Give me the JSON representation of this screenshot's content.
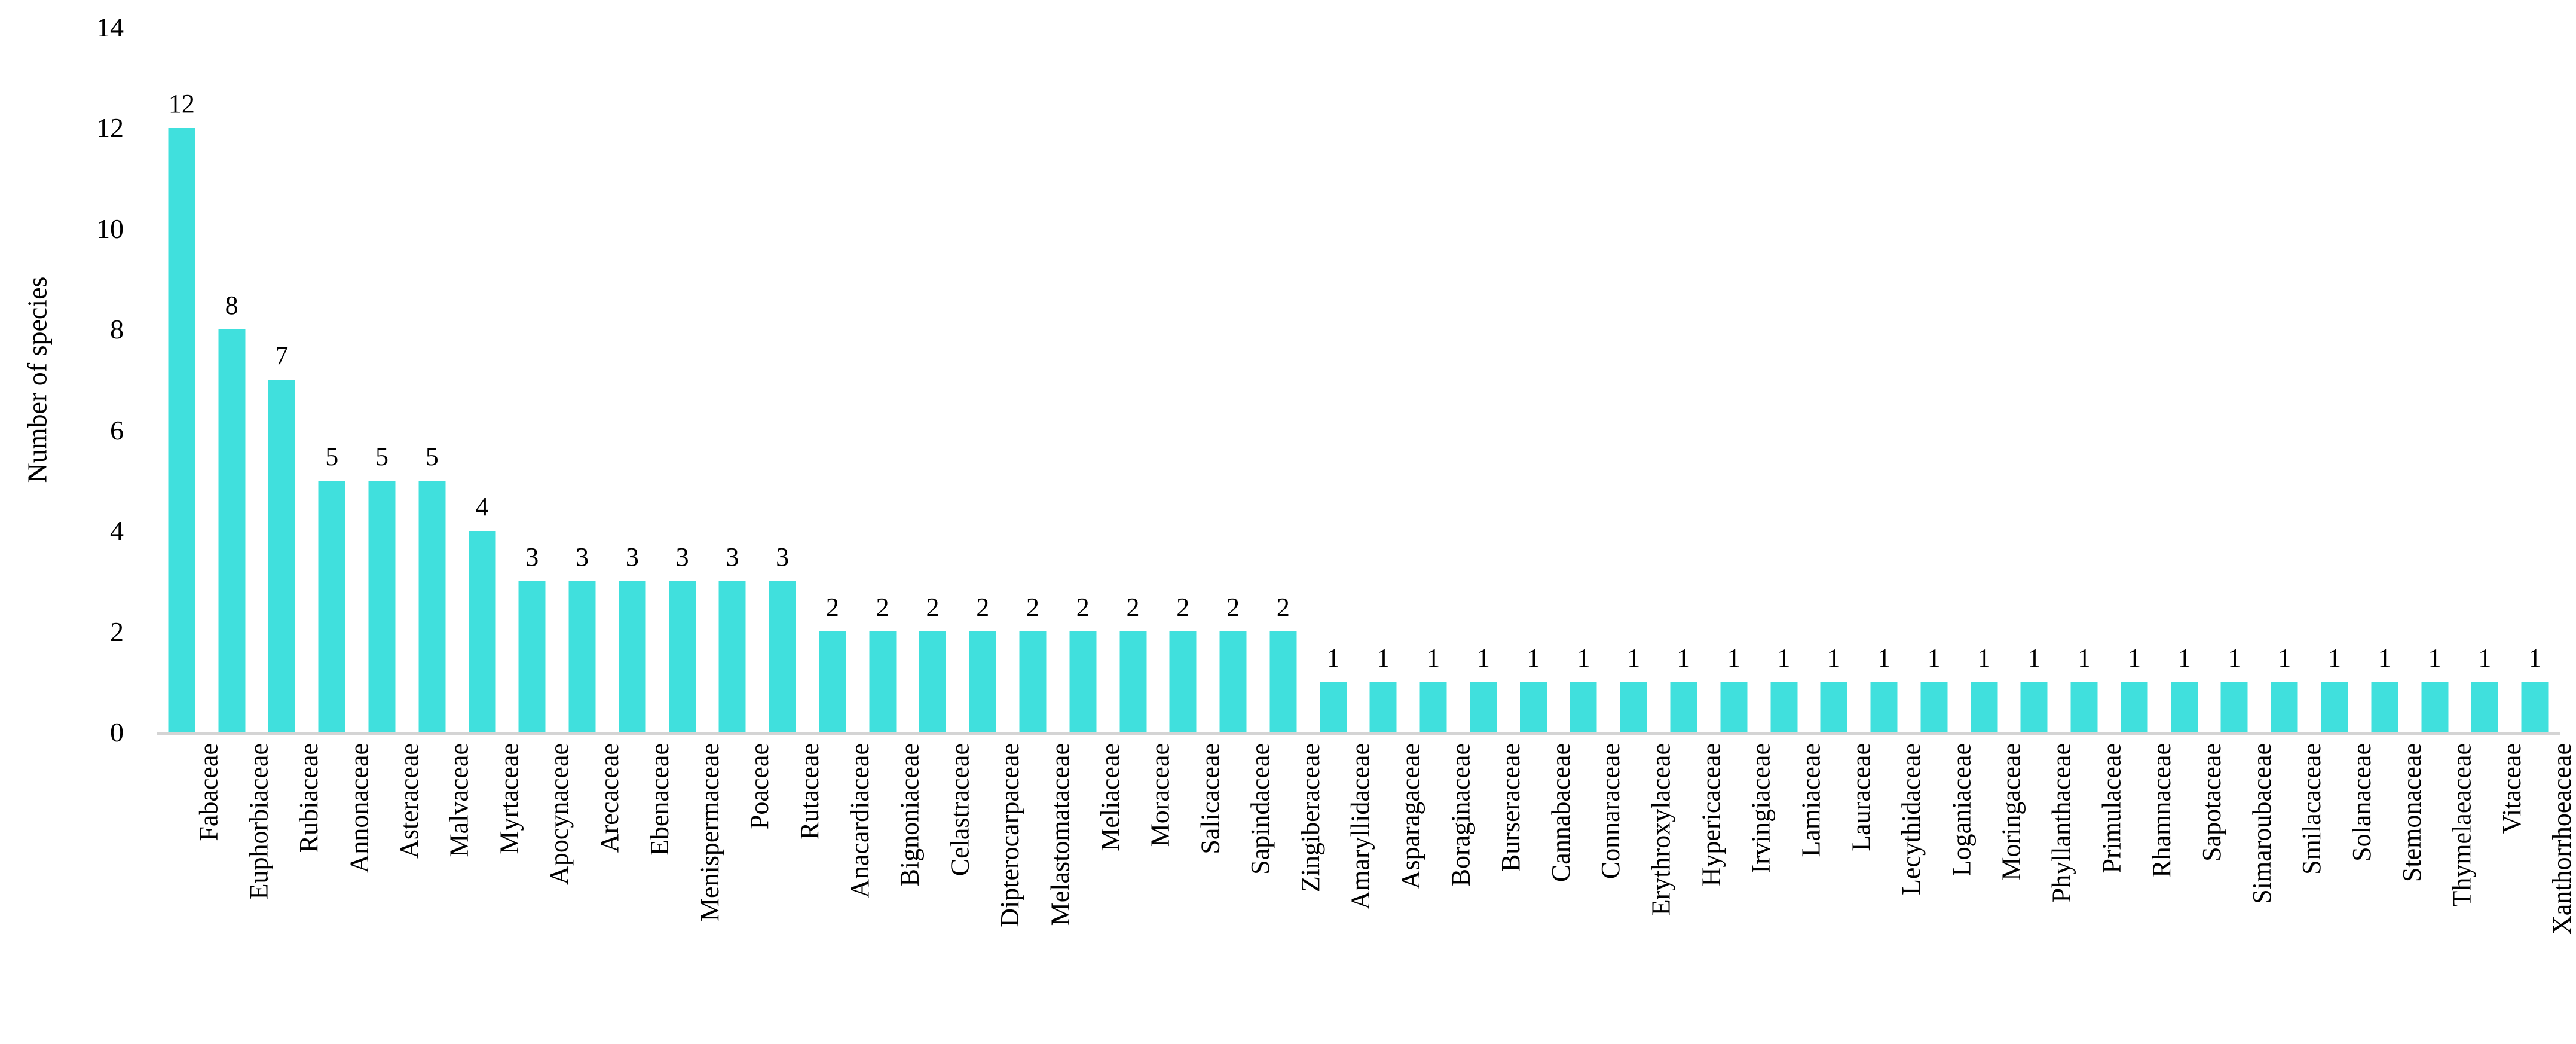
{
  "chart_data": {
    "type": "bar",
    "title": "",
    "ylabel": "Number of species",
    "xlabel": "",
    "ylim": [
      0,
      14
    ],
    "yticks": [
      0,
      2,
      4,
      6,
      8,
      10,
      12,
      14
    ],
    "grid": false,
    "legend": false,
    "data_labels_shown": true,
    "bar_color": "#40E0DD",
    "axis_line_color": "#D4D4D4",
    "text_color": "#000000",
    "categories": [
      "Fabaceae",
      "Euphorbiaceae",
      "Rubiaceae",
      "Annonaceae",
      "Asteraceae",
      "Malvaceae",
      "Myrtaceae",
      "Apocynaceae",
      "Arecaceae",
      "Ebenaceae",
      "Menispermaceae",
      "Poaceae",
      "Rutaceae",
      "Anacardiaceae",
      "Bignoniaceae",
      "Celastraceae",
      "Dipterocarpaceae",
      "Melastomataceae",
      "Meliaceae",
      "Moraceae",
      "Salicaceae",
      "Sapindaceae",
      "Zingiberaceae",
      "Amaryllidaceae",
      "Asparagaceae",
      "Boraginaceae",
      "Burseraceae",
      "Cannabaceae",
      "Connaraceae",
      "Erythroxylaceae",
      "Hypericaceae",
      "Irvingiaceae",
      "Lamiaceae",
      "Lauraceae",
      "Lecythidaceae",
      "Loganiaceae",
      "Moringaceae",
      "Phyllanthaceae",
      "Primulaceae",
      "Rhamnaceae",
      "Sapotaceae",
      "Simaroubaceae",
      "Smilacaceae",
      "Solanaceae",
      "Stemonaceae",
      "Thymelaeaceae",
      "Vitaceae",
      "Xanthorrhoeaceae"
    ],
    "values": [
      12,
      8,
      7,
      5,
      5,
      5,
      4,
      3,
      3,
      3,
      3,
      3,
      3,
      2,
      2,
      2,
      2,
      2,
      2,
      2,
      2,
      2,
      2,
      1,
      1,
      1,
      1,
      1,
      1,
      1,
      1,
      1,
      1,
      1,
      1,
      1,
      1,
      1,
      1,
      1,
      1,
      1,
      1,
      1,
      1,
      1,
      1,
      1
    ]
  }
}
